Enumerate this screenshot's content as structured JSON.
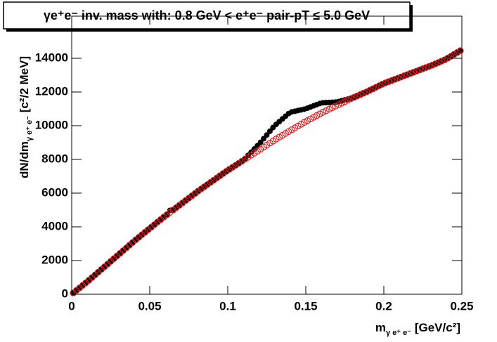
{
  "chart_data": {
    "type": "scatter",
    "title": "γe⁺e⁻ inv. mass with: 0.8 GeV < e⁺e⁻ pair-pT ≤ 5.0 GeV",
    "x_label": [
      "m",
      "γ e⁺ e⁻",
      " [GeV/c²]"
    ],
    "y_label": [
      "dN/dm",
      "γ e⁺ e⁻",
      " [c²/2 MeV]"
    ],
    "xlim": [
      0,
      0.25
    ],
    "ylim": [
      0,
      16500
    ],
    "xticks": [
      0,
      0.05,
      0.1,
      0.15,
      0.2,
      0.25
    ],
    "yticks": [
      0,
      2000,
      4000,
      6000,
      8000,
      10000,
      12000,
      14000
    ],
    "x": [
      0.001,
      0.003,
      0.005,
      0.007,
      0.009,
      0.011,
      0.013,
      0.015,
      0.017,
      0.019,
      0.021,
      0.023,
      0.025,
      0.027,
      0.029,
      0.031,
      0.033,
      0.035,
      0.037,
      0.039,
      0.041,
      0.043,
      0.045,
      0.047,
      0.049,
      0.051,
      0.053,
      0.055,
      0.057,
      0.059,
      0.061,
      0.063,
      0.065,
      0.067,
      0.069,
      0.071,
      0.073,
      0.075,
      0.077,
      0.079,
      0.081,
      0.083,
      0.085,
      0.087,
      0.089,
      0.091,
      0.093,
      0.095,
      0.097,
      0.099,
      0.101,
      0.103,
      0.105,
      0.107,
      0.109,
      0.111,
      0.113,
      0.115,
      0.117,
      0.119,
      0.121,
      0.123,
      0.125,
      0.127,
      0.129,
      0.131,
      0.133,
      0.135,
      0.137,
      0.139,
      0.141,
      0.143,
      0.145,
      0.147,
      0.149,
      0.151,
      0.153,
      0.155,
      0.157,
      0.159,
      0.161,
      0.163,
      0.165,
      0.167,
      0.169,
      0.171,
      0.173,
      0.175,
      0.177,
      0.179,
      0.181,
      0.183,
      0.185,
      0.187,
      0.189,
      0.191,
      0.193,
      0.195,
      0.197,
      0.199,
      0.201,
      0.203,
      0.205,
      0.207,
      0.209,
      0.211,
      0.213,
      0.215,
      0.217,
      0.219,
      0.221,
      0.223,
      0.225,
      0.227,
      0.229,
      0.231,
      0.233,
      0.235,
      0.237,
      0.239,
      0.241,
      0.243,
      0.245,
      0.247,
      0.249
    ],
    "series": [
      {
        "color": "#000000",
        "marker": "filled",
        "values": [
          90,
          240,
          370,
          540,
          680,
          830,
          1000,
          1150,
          1320,
          1470,
          1630,
          1800,
          1950,
          2120,
          2270,
          2440,
          2590,
          2760,
          2910,
          3080,
          3230,
          3390,
          3530,
          3690,
          3830,
          3990,
          4130,
          4300,
          4430,
          4600,
          4720,
          4980,
          5000,
          5160,
          5280,
          5420,
          5580,
          5700,
          5860,
          5980,
          6120,
          6270,
          6380,
          6520,
          6640,
          6770,
          6910,
          7030,
          7170,
          7290,
          7410,
          7540,
          7650,
          7780,
          7890,
          8050,
          8240,
          8430,
          8620,
          8810,
          9010,
          9230,
          9450,
          9670,
          9890,
          10080,
          10240,
          10400,
          10560,
          10720,
          10820,
          10860,
          10900,
          10940,
          10980,
          11040,
          11110,
          11180,
          11250,
          11320,
          11360,
          11370,
          11380,
          11390,
          11400,
          11430,
          11480,
          11530,
          11580,
          11630,
          11690,
          11780,
          11850,
          11940,
          12010,
          12110,
          12190,
          12290,
          12370,
          12470,
          12540,
          12620,
          12680,
          12760,
          12820,
          12900,
          12960,
          13040,
          13100,
          13180,
          13240,
          13320,
          13380,
          13460,
          13520,
          13600,
          13670,
          13760,
          13830,
          13920,
          14010,
          14130,
          14230,
          14350,
          14450
        ]
      },
      {
        "color": "#e41a1c",
        "marker": "open",
        "values": [
          75,
          225,
          375,
          525,
          675,
          830,
          990,
          1150,
          1310,
          1470,
          1630,
          1790,
          1950,
          2110,
          2270,
          2430,
          2590,
          2750,
          2910,
          3070,
          3230,
          3380,
          3530,
          3680,
          3830,
          3980,
          4130,
          4280,
          4430,
          4580,
          4720,
          4860,
          5000,
          5140,
          5280,
          5420,
          5560,
          5700,
          5840,
          5980,
          6120,
          6250,
          6380,
          6510,
          6640,
          6770,
          6900,
          7030,
          7160,
          7290,
          7410,
          7530,
          7650,
          7770,
          7890,
          8010,
          8130,
          8250,
          8370,
          8490,
          8610,
          8730,
          8850,
          8970,
          9090,
          9210,
          9320,
          9430,
          9540,
          9650,
          9760,
          9870,
          9980,
          10090,
          10200,
          10300,
          10400,
          10500,
          10600,
          10700,
          10800,
          10890,
          10980,
          11070,
          11160,
          11250,
          11340,
          11430,
          11520,
          11610,
          11690,
          11770,
          11850,
          11930,
          12010,
          12100,
          12190,
          12280,
          12370,
          12460,
          12540,
          12610,
          12680,
          12750,
          12820,
          12890,
          12960,
          13030,
          13100,
          13170,
          13240,
          13310,
          13380,
          13450,
          13520,
          13590,
          13670,
          13750,
          13830,
          13910,
          14010,
          14120,
          14230,
          14340,
          14450
        ]
      }
    ]
  }
}
